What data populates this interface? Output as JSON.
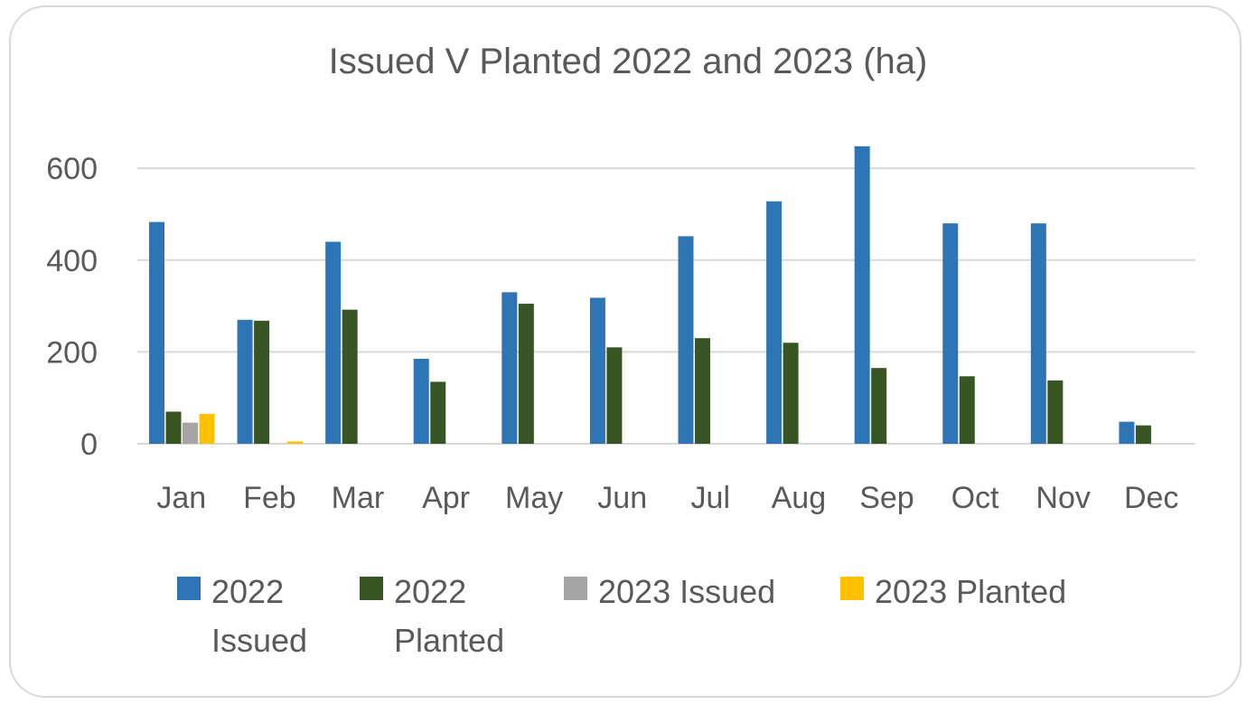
{
  "chart_data": {
    "type": "bar",
    "title": "Issued V Planted 2022 and 2023 (ha)",
    "xlabel": "",
    "ylabel": "",
    "categories": [
      "Jan",
      "Feb",
      "Mar",
      "Apr",
      "May",
      "Jun",
      "Jul",
      "Aug",
      "Sep",
      "Oct",
      "Nov",
      "Dec"
    ],
    "ylim": [
      0,
      650
    ],
    "yticks": [
      0,
      200,
      400,
      600
    ],
    "grid": true,
    "legend_position": "bottom",
    "series": [
      {
        "name": "2022 Issued",
        "color": "#2e75b6",
        "values": [
          483,
          270,
          440,
          185,
          330,
          318,
          452,
          528,
          648,
          480,
          480,
          48
        ]
      },
      {
        "name": "2022 Planted",
        "color": "#375623",
        "values": [
          70,
          268,
          292,
          135,
          305,
          210,
          230,
          220,
          165,
          147,
          138,
          40
        ]
      },
      {
        "name": "2023 Issued",
        "color": "#a5a5a5",
        "values": [
          46,
          0,
          0,
          0,
          0,
          0,
          0,
          0,
          0,
          0,
          0,
          0
        ]
      },
      {
        "name": "2023 Planted",
        "color": "#ffc000",
        "values": [
          65,
          5,
          0,
          0,
          0,
          0,
          0,
          0,
          0,
          0,
          0,
          0
        ]
      }
    ]
  }
}
